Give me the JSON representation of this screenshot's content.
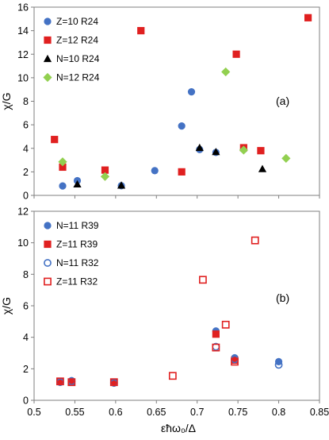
{
  "chart_data": [
    {
      "type": "scatter",
      "panel_label": "(a)",
      "ylabel": "χ/G",
      "xlim": [
        0.5,
        0.85
      ],
      "ylim": [
        0,
        16
      ],
      "yticks": [
        0,
        2,
        4,
        6,
        8,
        10,
        12,
        14,
        16
      ],
      "ytick_labels": [
        "0",
        "2",
        "4",
        "6",
        "8",
        "10",
        "12",
        "14",
        "16"
      ],
      "legend_position": "top-left",
      "series": [
        {
          "name": "Z=10 R24",
          "marker": "circle",
          "color": "#4472c4",
          "x": [
            0.535,
            0.553,
            0.607,
            0.648,
            0.681,
            0.693,
            0.703,
            0.723,
            0.757
          ],
          "y": [
            0.8,
            1.25,
            0.82,
            2.1,
            5.9,
            8.8,
            3.9,
            3.65,
            3.9
          ]
        },
        {
          "name": "Z=12 R24",
          "marker": "square",
          "color": "#e02020",
          "x": [
            0.525,
            0.535,
            0.587,
            0.631,
            0.681,
            0.748,
            0.757,
            0.778,
            0.836
          ],
          "y": [
            4.75,
            2.4,
            2.15,
            14.0,
            2.0,
            12.0,
            4.05,
            3.8,
            15.1
          ]
        },
        {
          "name": "N=10 R24",
          "marker": "triangle",
          "color": "#000000",
          "x": [
            0.553,
            0.607,
            0.703,
            0.723,
            0.78
          ],
          "y": [
            0.95,
            0.85,
            4.05,
            3.7,
            2.25
          ]
        },
        {
          "name": "N=12 R24",
          "marker": "diamond",
          "color": "#92d050",
          "x": [
            0.535,
            0.587,
            0.735,
            0.757,
            0.809
          ],
          "y": [
            2.85,
            1.6,
            10.5,
            3.85,
            3.15
          ]
        }
      ]
    },
    {
      "type": "scatter",
      "panel_label": "(b)",
      "ylabel": "χ/G",
      "xlabel": "εħω₀/Δ",
      "xlim": [
        0.5,
        0.85
      ],
      "ylim": [
        0,
        12
      ],
      "xticks": [
        0.5,
        0.55,
        0.6,
        0.65,
        0.7,
        0.75,
        0.8,
        0.85
      ],
      "xtick_labels": [
        "0.5",
        "0.55",
        "0.6",
        "0.65",
        "0.7",
        "0.75",
        "0.8",
        "0.85"
      ],
      "yticks": [
        0,
        2,
        4,
        6,
        8,
        10,
        12
      ],
      "ytick_labels": [
        "0",
        "2",
        "4",
        "6",
        "8",
        "10",
        "12"
      ],
      "legend_position": "top-left",
      "series": [
        {
          "name": "N=11 R39",
          "marker": "circle",
          "color": "#4472c4",
          "x": [
            0.532,
            0.546,
            0.598,
            0.723,
            0.746,
            0.8
          ],
          "y": [
            1.15,
            1.25,
            1.1,
            4.4,
            2.7,
            2.45
          ]
        },
        {
          "name": "Z=11 R39",
          "marker": "square",
          "color": "#e02020",
          "x": [
            0.532,
            0.546,
            0.598,
            0.723,
            0.746
          ],
          "y": [
            1.2,
            1.15,
            1.15,
            4.2,
            2.55
          ]
        },
        {
          "name": "N=11 R32",
          "marker": "circle-open",
          "color": "#4472c4",
          "x": [
            0.532,
            0.546,
            0.598,
            0.723,
            0.746,
            0.8
          ],
          "y": [
            1.15,
            1.2,
            1.1,
            3.4,
            2.6,
            2.25
          ]
        },
        {
          "name": "Z=11 R32",
          "marker": "square-open",
          "color": "#e02020",
          "x": [
            0.532,
            0.546,
            0.598,
            0.67,
            0.707,
            0.723,
            0.735,
            0.746,
            0.771
          ],
          "y": [
            1.2,
            1.15,
            1.15,
            1.55,
            7.65,
            3.35,
            4.8,
            2.45,
            10.15
          ]
        }
      ]
    }
  ]
}
